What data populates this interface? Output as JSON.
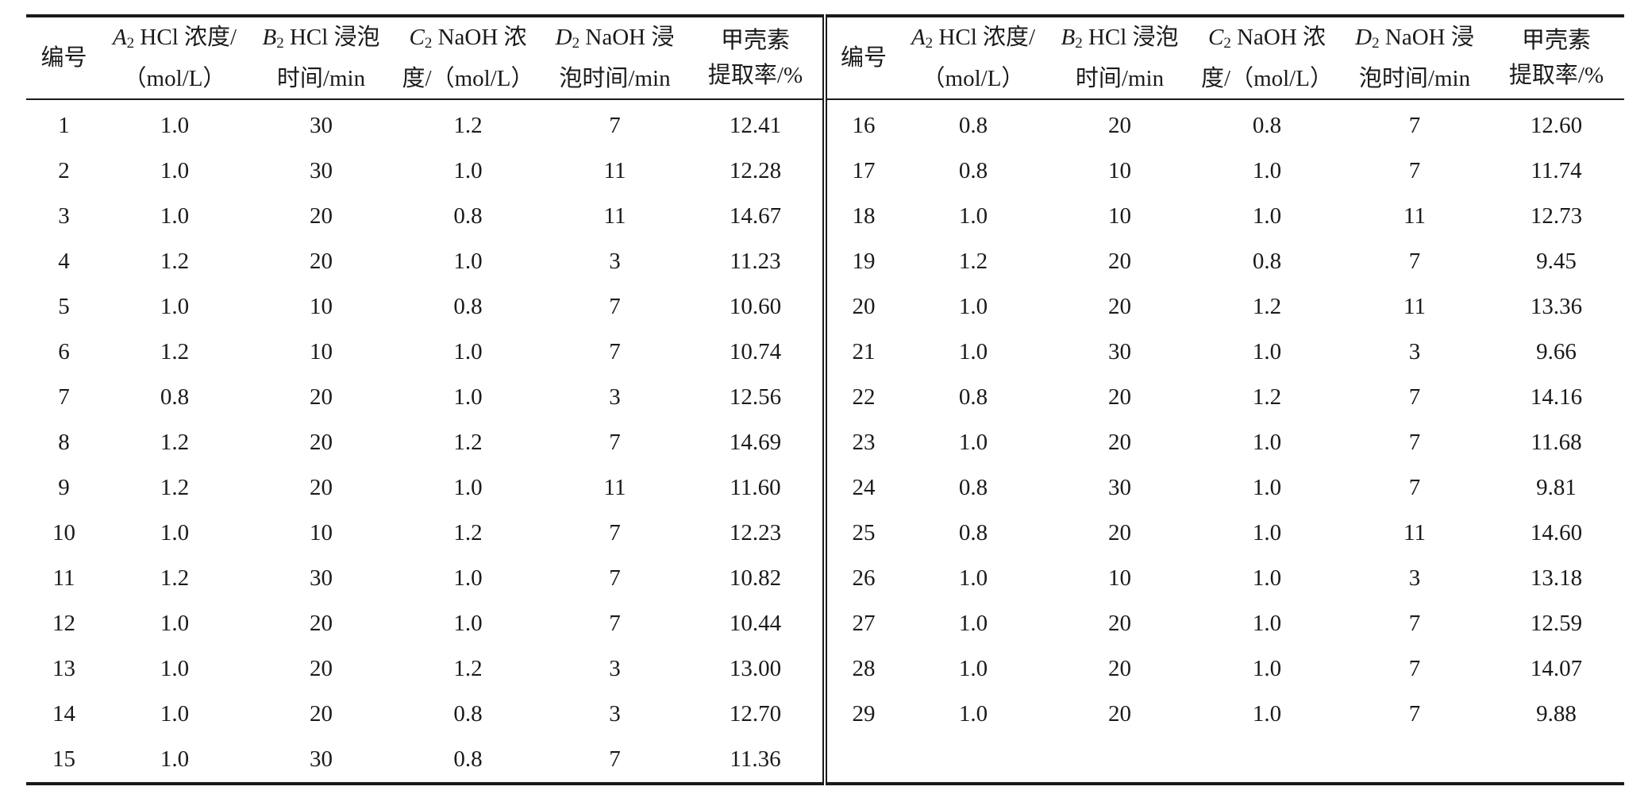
{
  "table": {
    "columns": [
      {
        "line1": "编号",
        "line2": ""
      },
      {
        "var": "A",
        "sub": "2",
        "line1": " HCl 浓度/",
        "line2": "（mol/L）"
      },
      {
        "var": "B",
        "sub": "2",
        "line1": " HCl 浸泡",
        "line2": "时间/min"
      },
      {
        "var": "C",
        "sub": "2",
        "line1": " NaOH 浓",
        "line2": "度/（mol/L）"
      },
      {
        "var": "D",
        "sub": "2",
        "line1": " NaOH 浸",
        "line2": "泡时间/min"
      },
      {
        "line1": "甲壳素",
        "line2": "提取率/%"
      }
    ],
    "left_rows": [
      [
        "1",
        "1.0",
        "30",
        "1.2",
        "7",
        "12.41"
      ],
      [
        "2",
        "1.0",
        "30",
        "1.0",
        "11",
        "12.28"
      ],
      [
        "3",
        "1.0",
        "20",
        "0.8",
        "11",
        "14.67"
      ],
      [
        "4",
        "1.2",
        "20",
        "1.0",
        "3",
        "11.23"
      ],
      [
        "5",
        "1.0",
        "10",
        "0.8",
        "7",
        "10.60"
      ],
      [
        "6",
        "1.2",
        "10",
        "1.0",
        "7",
        "10.74"
      ],
      [
        "7",
        "0.8",
        "20",
        "1.0",
        "3",
        "12.56"
      ],
      [
        "8",
        "1.2",
        "20",
        "1.2",
        "7",
        "14.69"
      ],
      [
        "9",
        "1.2",
        "20",
        "1.0",
        "11",
        "11.60"
      ],
      [
        "10",
        "1.0",
        "10",
        "1.2",
        "7",
        "12.23"
      ],
      [
        "11",
        "1.2",
        "30",
        "1.0",
        "7",
        "10.82"
      ],
      [
        "12",
        "1.0",
        "20",
        "1.0",
        "7",
        "10.44"
      ],
      [
        "13",
        "1.0",
        "20",
        "1.2",
        "3",
        "13.00"
      ],
      [
        "14",
        "1.0",
        "20",
        "0.8",
        "3",
        "12.70"
      ],
      [
        "15",
        "1.0",
        "30",
        "0.8",
        "7",
        "11.36"
      ]
    ],
    "right_rows": [
      [
        "16",
        "0.8",
        "20",
        "0.8",
        "7",
        "12.60"
      ],
      [
        "17",
        "0.8",
        "10",
        "1.0",
        "7",
        "11.74"
      ],
      [
        "18",
        "1.0",
        "10",
        "1.0",
        "11",
        "12.73"
      ],
      [
        "19",
        "1.2",
        "20",
        "0.8",
        "7",
        "9.45"
      ],
      [
        "20",
        "1.0",
        "20",
        "1.2",
        "11",
        "13.36"
      ],
      [
        "21",
        "1.0",
        "30",
        "1.0",
        "3",
        "9.66"
      ],
      [
        "22",
        "0.8",
        "20",
        "1.2",
        "7",
        "14.16"
      ],
      [
        "23",
        "1.0",
        "20",
        "1.0",
        "7",
        "11.68"
      ],
      [
        "24",
        "0.8",
        "30",
        "1.0",
        "7",
        "9.81"
      ],
      [
        "25",
        "0.8",
        "20",
        "1.0",
        "11",
        "14.60"
      ],
      [
        "26",
        "1.0",
        "10",
        "1.0",
        "3",
        "13.18"
      ],
      [
        "27",
        "1.0",
        "20",
        "1.0",
        "7",
        "12.59"
      ],
      [
        "28",
        "1.0",
        "20",
        "1.0",
        "7",
        "14.07"
      ],
      [
        "29",
        "1.0",
        "20",
        "1.0",
        "7",
        "9.88"
      ]
    ]
  }
}
